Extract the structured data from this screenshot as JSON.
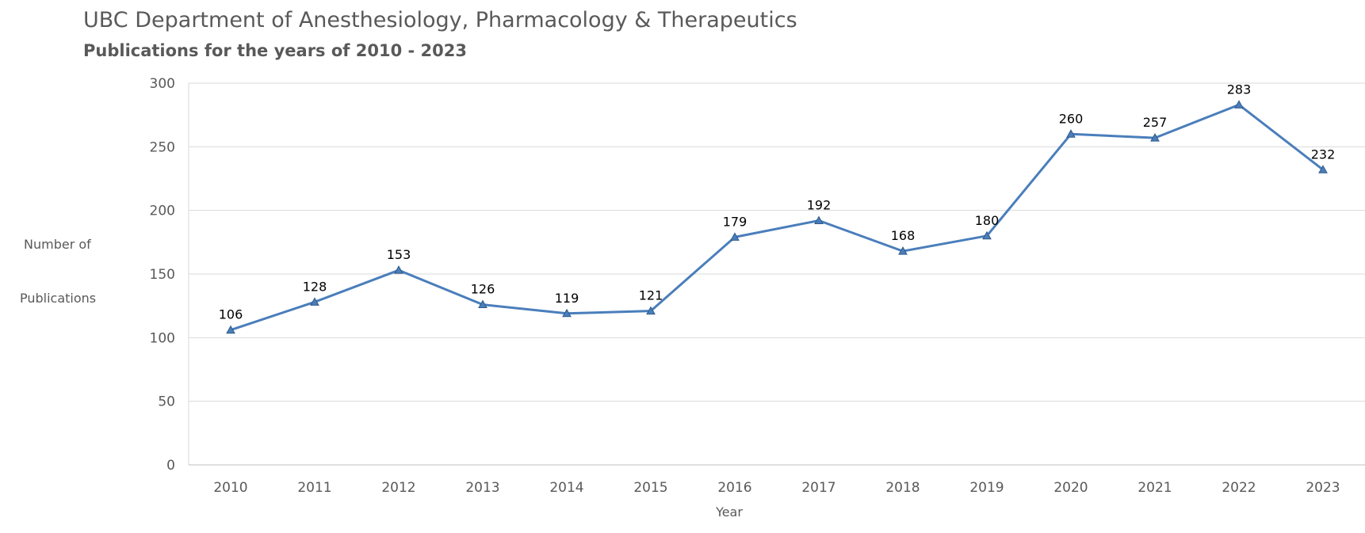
{
  "chart_data": {
    "type": "line",
    "title": "UBC Department of Anesthesiology, Pharmacology & Therapeutics",
    "subtitle": "Publications for the years of 2010 - 2023",
    "xlabel": "Year",
    "ylabel_lines": [
      "Number of",
      "Publications"
    ],
    "categories": [
      "2010",
      "2011",
      "2012",
      "2013",
      "2014",
      "2015",
      "2016",
      "2017",
      "2018",
      "2019",
      "2020",
      "2021",
      "2022",
      "2023"
    ],
    "series": [
      {
        "values": [
          106,
          128,
          153,
          126,
          119,
          121,
          179,
          192,
          168,
          180,
          260,
          257,
          283,
          232
        ],
        "color": "#4a7ebb",
        "marker": "triangle"
      }
    ],
    "ylim": [
      0,
      300
    ],
    "yticks": [
      0,
      50,
      100,
      150,
      200,
      250,
      300
    ],
    "data_labels": true,
    "grid": true,
    "legend": "none"
  }
}
